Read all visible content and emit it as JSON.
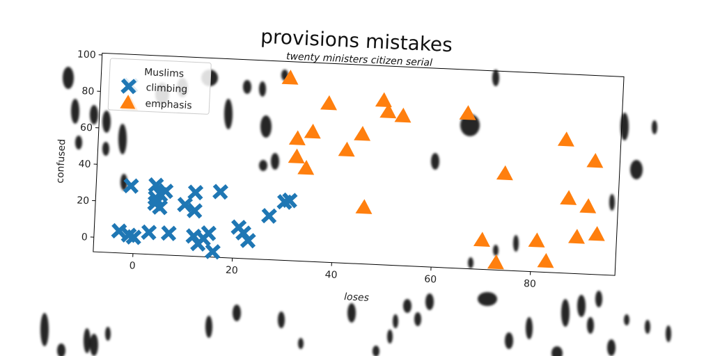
{
  "chart_data": {
    "type": "scatter",
    "title": "provisions mistakes",
    "subtitle": "twenty ministers citizen serial",
    "xlabel": "loses",
    "ylabel": "confused",
    "xlim": [
      -8,
      97
    ],
    "ylim": [
      -8,
      101
    ],
    "xticks": [
      0,
      20,
      40,
      60,
      80
    ],
    "yticks": [
      0,
      20,
      40,
      60,
      80,
      100
    ],
    "legend": {
      "title": "Muslims",
      "position": "top-left"
    },
    "grid": false,
    "series": [
      {
        "name": "climbing",
        "marker": "x",
        "color": "#1f77b4",
        "points": [
          {
            "x": -3,
            "y": 4
          },
          {
            "x": -1,
            "y": 2
          },
          {
            "x": 0,
            "y": 1
          },
          {
            "x": 3,
            "y": 4
          },
          {
            "x": 4,
            "y": 23
          },
          {
            "x": 4,
            "y": 20
          },
          {
            "x": 5,
            "y": 25
          },
          {
            "x": 5,
            "y": 18
          },
          {
            "x": 4,
            "y": 30
          },
          {
            "x": 6,
            "y": 27
          },
          {
            "x": 7,
            "y": 4
          },
          {
            "x": 10,
            "y": 20
          },
          {
            "x": 12,
            "y": 17
          },
          {
            "x": 12,
            "y": 27
          },
          {
            "x": 12,
            "y": 3
          },
          {
            "x": 13,
            "y": -1
          },
          {
            "x": 14,
            "y": 2
          },
          {
            "x": 15,
            "y": 5
          },
          {
            "x": 16,
            "y": -5
          },
          {
            "x": 17,
            "y": 28
          },
          {
            "x": 21,
            "y": 9
          },
          {
            "x": 22,
            "y": 6
          },
          {
            "x": 23,
            "y": 2
          },
          {
            "x": 27,
            "y": 16
          },
          {
            "x": 30,
            "y": 24
          },
          {
            "x": 31,
            "y": 25
          },
          {
            "x": -1,
            "y": 29
          },
          {
            "x": -2,
            "y": 84
          }
        ]
      },
      {
        "name": "emphasis",
        "marker": "^",
        "color": "#ff7f0e",
        "points": [
          {
            "x": -2,
            "y": 74
          },
          {
            "x": 30,
            "y": 92
          },
          {
            "x": 32,
            "y": 59
          },
          {
            "x": 32,
            "y": 49
          },
          {
            "x": 34,
            "y": 43
          },
          {
            "x": 35,
            "y": 63
          },
          {
            "x": 38,
            "y": 79
          },
          {
            "x": 42,
            "y": 54
          },
          {
            "x": 45,
            "y": 63
          },
          {
            "x": 46,
            "y": 23
          },
          {
            "x": 49,
            "y": 82
          },
          {
            "x": 50,
            "y": 76
          },
          {
            "x": 53,
            "y": 74
          },
          {
            "x": 66,
            "y": 77
          },
          {
            "x": 70,
            "y": 8
          },
          {
            "x": 73,
            "y": -4
          },
          {
            "x": 74,
            "y": 45
          },
          {
            "x": 81,
            "y": 9
          },
          {
            "x": 83,
            "y": -2
          },
          {
            "x": 86,
            "y": 65
          },
          {
            "x": 87,
            "y": 33
          },
          {
            "x": 89,
            "y": 12
          },
          {
            "x": 91,
            "y": 29
          },
          {
            "x": 92,
            "y": 54
          },
          {
            "x": 93,
            "y": 14
          }
        ]
      }
    ]
  }
}
